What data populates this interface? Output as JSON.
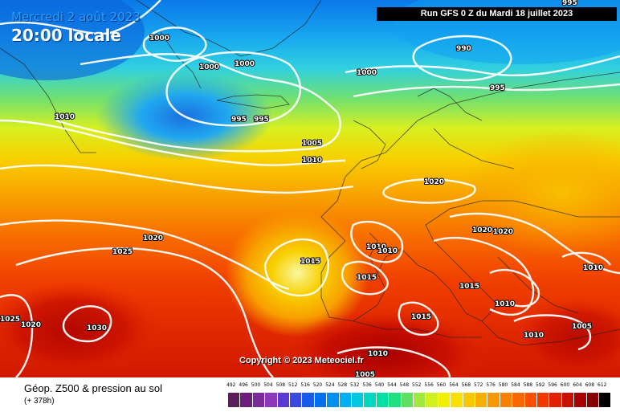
{
  "header": {
    "date": "Mercredi 2 août 2023",
    "time": "20:00 locale",
    "run": "Run GFS 0 Z du Mardi 18 juillet 2023"
  },
  "copyright": "Copyright © 2023 Meteociel.fr",
  "footer": {
    "title": "Géop. Z500 & pression au sol",
    "subtitle": "(+ 378h)"
  },
  "isobar_labels": [
    "1000",
    "1000",
    "1000",
    "1000",
    "1010",
    "995",
    "995",
    "995",
    "990",
    "995",
    "1005",
    "1010",
    "1020",
    "1020",
    "1020",
    "1025",
    "1020",
    "1015",
    "1010",
    "1010",
    "1015",
    "1015",
    "1010",
    "1015",
    "1010",
    "1005",
    "1010",
    "1020",
    "1025",
    "1030",
    "1010",
    "1005"
  ],
  "scale": {
    "values": [
      "492",
      "496",
      "500",
      "504",
      "508",
      "512",
      "516",
      "520",
      "524",
      "528",
      "532",
      "536",
      "540",
      "544",
      "548",
      "552",
      "556",
      "560",
      "564",
      "568",
      "572",
      "576",
      "580",
      "584",
      "588",
      "592",
      "596",
      "600",
      "604",
      "608",
      "612"
    ],
    "colors": [
      "#5a1f5a",
      "#6b1f7a",
      "#7a2a9a",
      "#8a3ab8",
      "#5a3ad0",
      "#3a4ae0",
      "#1a5ae8",
      "#0070f0",
      "#0090f0",
      "#00b0f0",
      "#00c8e0",
      "#00d8c0",
      "#00e0a0",
      "#20e080",
      "#60e060",
      "#a0e840",
      "#d0f020",
      "#f0f000",
      "#f8e000",
      "#f8c800",
      "#f8b000",
      "#f89800",
      "#f88000",
      "#f86800",
      "#f85000",
      "#f03800",
      "#e02000",
      "#c81000",
      "#a80000",
      "#880000",
      "#000000"
    ]
  },
  "colors": {
    "run_bg": "#000000",
    "date_text": "#2aa0ff",
    "time_text": "#ffffff"
  }
}
